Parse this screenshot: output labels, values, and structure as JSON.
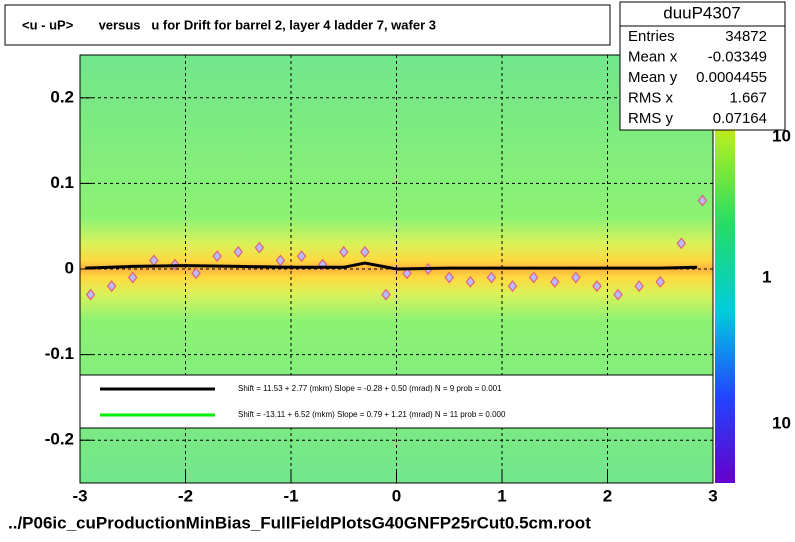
{
  "chart_data": {
    "type": "scatter",
    "title": "<u - uP>       versus   u for Drift for barrel 2, layer 4 ladder 7, wafer 3",
    "footer": "../P06ic_cuProductionMinBias_FullFieldPlotsG40GNFP25rCut0.5cm.root",
    "stats": {
      "title": "duuP4307",
      "rows": [
        [
          "Entries",
          "34872"
        ],
        [
          "Mean x",
          "-0.03349"
        ],
        [
          "Mean y",
          "0.0004455"
        ],
        [
          "RMS x",
          "1.667"
        ],
        [
          "RMS y",
          "0.07164"
        ]
      ]
    },
    "legend": [
      {
        "text": "Shift =    11.53 + 2.77 (mkm) Slope =    -0.28 + 0.50 (mrad)  N = 9 prob = 0.001",
        "color": "#000000"
      },
      {
        "text": "Shift =   -13.11 + 6.52 (mkm) Slope =     0.79 + 1.21 (mrad)  N = 11 prob = 0.000",
        "color": "#00ee00"
      }
    ],
    "colorbar_labels": [
      "10",
      "1",
      "10"
    ],
    "xlim": [
      -3,
      3
    ],
    "xticks": [
      -3,
      -2,
      -1,
      0,
      1,
      2,
      3
    ],
    "ylim": [
      -0.25,
      0.25
    ],
    "yticks": [
      -0.2,
      -0.1,
      0,
      0.1,
      0.2
    ],
    "grid": true,
    "series": [
      {
        "color": "#e06080",
        "marker": "diamond",
        "x": [
          -2.9,
          -2.7,
          -2.5,
          -2.3,
          -2.1,
          -1.9,
          -1.7,
          -1.5,
          -1.3,
          -1.1,
          -0.9,
          -0.7,
          -0.5,
          -0.3,
          -0.1,
          0.1,
          0.3,
          0.5,
          0.7,
          0.9,
          1.1,
          1.3,
          1.5,
          1.7,
          1.9,
          2.1,
          2.3,
          2.5,
          2.7,
          2.9
        ],
        "values": [
          -0.03,
          -0.02,
          -0.01,
          0.01,
          0.005,
          -0.005,
          0.015,
          0.02,
          0.025,
          0.01,
          0.015,
          0.005,
          0.02,
          0.02,
          -0.03,
          -0.005,
          0.0,
          -0.01,
          -0.015,
          -0.01,
          -0.02,
          -0.01,
          -0.015,
          -0.01,
          -0.02,
          -0.03,
          -0.02,
          -0.015,
          0.03,
          0.08
        ]
      },
      {
        "color": "#000000",
        "marker": "line",
        "x": [
          -2.95,
          -2.5,
          -2,
          -1.5,
          -1,
          -0.5,
          -0.3,
          0,
          0.5,
          1,
          1.5,
          2,
          2.5,
          2.85
        ],
        "values": [
          0.001,
          0.003,
          0.004,
          0.003,
          0.002,
          0.002,
          0.007,
          0,
          0.001,
          0.001,
          0.001,
          0.001,
          0.001,
          0.002
        ]
      }
    ]
  }
}
